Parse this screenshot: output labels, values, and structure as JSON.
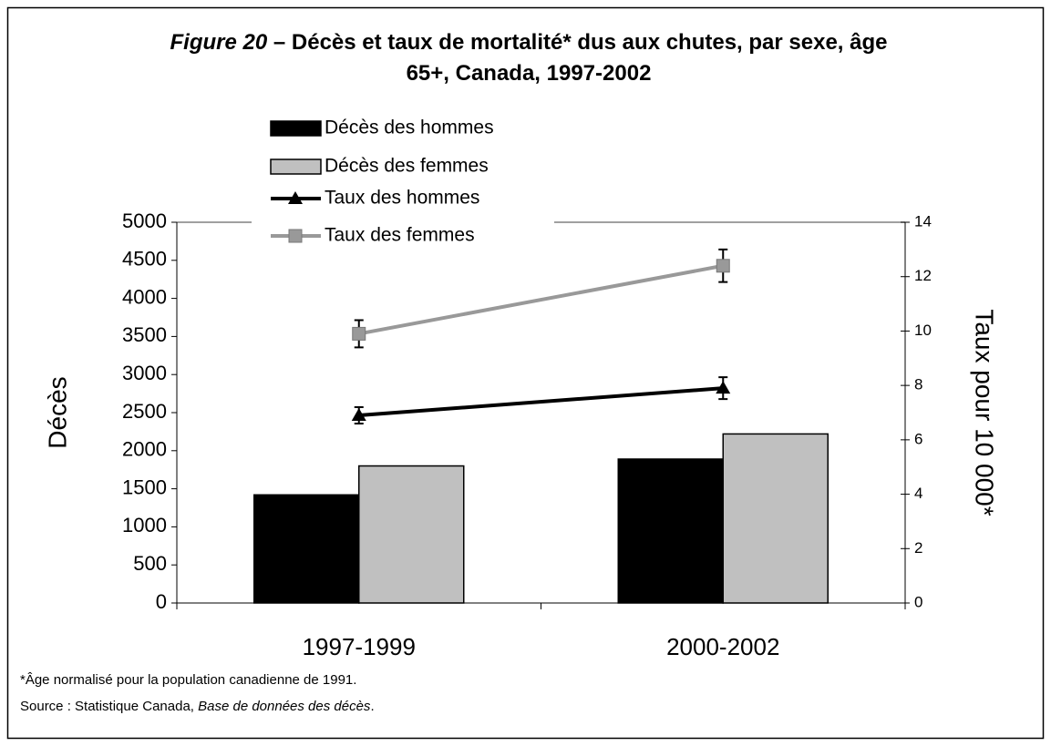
{
  "chart_data": {
    "type": "bar",
    "figure_label": "Figure 20",
    "title": "– Décès et taux de mortalité* dus aux chutes, par sexe, âge 65+, Canada, 1997-2002",
    "categories": [
      "1997-1999",
      "2000-2002"
    ],
    "series": [
      {
        "name": "Décès des hommes",
        "type": "bar",
        "color": "#000000",
        "values": [
          1420,
          1890
        ]
      },
      {
        "name": "Décès des femmes",
        "type": "bar",
        "color": "#c0c0c0",
        "values": [
          1800,
          2220
        ]
      },
      {
        "name": "Taux des hommes",
        "type": "line",
        "marker": "triangle",
        "axis": "y2",
        "color": "#000000",
        "values": [
          6.9,
          7.9
        ],
        "errors": [
          0.3,
          0.4
        ]
      },
      {
        "name": "Taux des femmes",
        "type": "line",
        "marker": "square",
        "axis": "y2",
        "color": "#999999",
        "values": [
          9.9,
          12.4
        ],
        "errors": [
          0.5,
          0.6
        ]
      }
    ],
    "ylabel": "Décès",
    "y2label": "Taux pour 10 000*",
    "ylim": [
      0,
      5000
    ],
    "yticks": [
      0,
      500,
      1000,
      1500,
      2000,
      2500,
      3000,
      3500,
      4000,
      4500,
      5000
    ],
    "y2lim": [
      0,
      14
    ],
    "y2ticks": [
      0,
      2,
      4,
      6,
      8,
      10,
      12,
      14
    ],
    "footnote": "*Âge normalisé pour la population canadienne de 1991.",
    "source_prefix": "Source : Statistique Canada, ",
    "source_italic": "Base de données des décès",
    "source_suffix": "."
  }
}
